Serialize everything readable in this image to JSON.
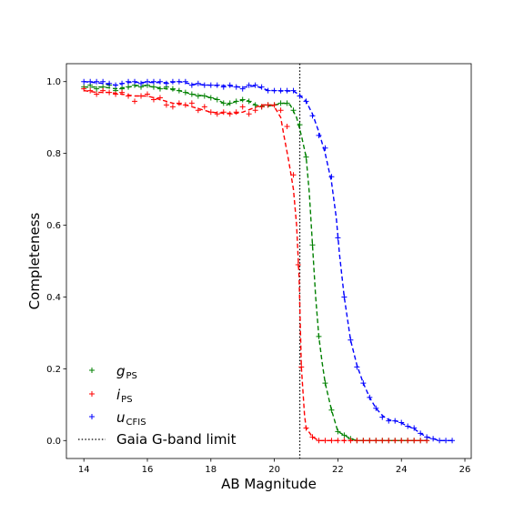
{
  "chart_data": {
    "type": "line",
    "xlabel": "AB Magnitude",
    "ylabel": "Completeness",
    "xlim": [
      13.45,
      26.2
    ],
    "ylim": [
      -0.05,
      1.05
    ],
    "xticks": [
      14,
      16,
      18,
      20,
      22,
      24,
      26
    ],
    "yticks": [
      0.0,
      0.2,
      0.4,
      0.6,
      0.8,
      1.0
    ],
    "legend_position": "lower-left",
    "grid": false,
    "vline": {
      "x": 20.8,
      "label": "Gaia G-band limit",
      "color": "#000000"
    },
    "series": [
      {
        "name_main": "g",
        "name_sub": "PS",
        "color": "#008000",
        "markers": [
          [
            14.0,
            0.985
          ],
          [
            14.2,
            0.99
          ],
          [
            14.4,
            0.98
          ],
          [
            14.6,
            0.985
          ],
          [
            14.8,
            0.99
          ],
          [
            15.0,
            0.975
          ],
          [
            15.2,
            0.98
          ],
          [
            15.4,
            0.985
          ],
          [
            15.6,
            0.99
          ],
          [
            15.8,
            0.985
          ],
          [
            16.0,
            0.99
          ],
          [
            16.2,
            0.985
          ],
          [
            16.4,
            0.98
          ],
          [
            16.6,
            0.985
          ],
          [
            16.8,
            0.98
          ],
          [
            17.0,
            0.975
          ],
          [
            17.2,
            0.97
          ],
          [
            17.4,
            0.965
          ],
          [
            17.6,
            0.96
          ],
          [
            17.8,
            0.96
          ],
          [
            18.0,
            0.955
          ],
          [
            18.2,
            0.95
          ],
          [
            18.4,
            0.94
          ],
          [
            18.6,
            0.94
          ],
          [
            18.8,
            0.945
          ],
          [
            19.0,
            0.95
          ],
          [
            19.2,
            0.945
          ],
          [
            19.4,
            0.935
          ],
          [
            19.6,
            0.93
          ],
          [
            19.8,
            0.935
          ],
          [
            20.0,
            0.935
          ],
          [
            20.2,
            0.94
          ],
          [
            20.4,
            0.94
          ],
          [
            20.6,
            0.92
          ],
          [
            20.8,
            0.88
          ],
          [
            21.0,
            0.79
          ],
          [
            21.2,
            0.545
          ],
          [
            21.4,
            0.29
          ],
          [
            21.6,
            0.16
          ],
          [
            21.8,
            0.085
          ],
          [
            22.0,
            0.025
          ],
          [
            22.2,
            0.015
          ],
          [
            22.4,
            0.005
          ],
          [
            22.6,
            0.0
          ],
          [
            22.8,
            0.0
          ],
          [
            23.0,
            0.0
          ],
          [
            23.2,
            0.0
          ],
          [
            23.4,
            0.0
          ],
          [
            23.6,
            0.0
          ],
          [
            23.8,
            0.0
          ],
          [
            24.0,
            0.0
          ],
          [
            24.2,
            0.0
          ],
          [
            24.4,
            0.0
          ],
          [
            24.6,
            0.0
          ],
          [
            24.8,
            0.0
          ]
        ],
        "line": [
          [
            14.0,
            0.985
          ],
          [
            14.3,
            0.985
          ],
          [
            14.6,
            0.985
          ],
          [
            15.0,
            0.98
          ],
          [
            15.4,
            0.985
          ],
          [
            15.8,
            0.99
          ],
          [
            16.2,
            0.985
          ],
          [
            16.6,
            0.98
          ],
          [
            17.0,
            0.975
          ],
          [
            17.4,
            0.965
          ],
          [
            17.8,
            0.96
          ],
          [
            18.2,
            0.95
          ],
          [
            18.5,
            0.935
          ],
          [
            18.8,
            0.945
          ],
          [
            19.1,
            0.95
          ],
          [
            19.4,
            0.935
          ],
          [
            19.7,
            0.93
          ],
          [
            20.0,
            0.935
          ],
          [
            20.3,
            0.94
          ],
          [
            20.5,
            0.935
          ],
          [
            20.7,
            0.9
          ],
          [
            20.85,
            0.85
          ],
          [
            21.0,
            0.79
          ],
          [
            21.1,
            0.69
          ],
          [
            21.2,
            0.545
          ],
          [
            21.3,
            0.4
          ],
          [
            21.4,
            0.29
          ],
          [
            21.5,
            0.22
          ],
          [
            21.6,
            0.16
          ],
          [
            21.8,
            0.085
          ],
          [
            22.0,
            0.025
          ],
          [
            22.2,
            0.015
          ],
          [
            22.4,
            0.005
          ],
          [
            22.6,
            0.0
          ],
          [
            24.8,
            0.0
          ]
        ]
      },
      {
        "name_main": "i",
        "name_sub": "PS",
        "color": "#ff0000",
        "markers": [
          [
            14.0,
            0.98
          ],
          [
            14.2,
            0.975
          ],
          [
            14.4,
            0.965
          ],
          [
            14.6,
            0.975
          ],
          [
            14.8,
            0.97
          ],
          [
            15.0,
            0.965
          ],
          [
            15.2,
            0.97
          ],
          [
            15.4,
            0.96
          ],
          [
            15.6,
            0.945
          ],
          [
            15.8,
            0.96
          ],
          [
            16.0,
            0.965
          ],
          [
            16.2,
            0.95
          ],
          [
            16.4,
            0.955
          ],
          [
            16.6,
            0.935
          ],
          [
            16.8,
            0.93
          ],
          [
            17.0,
            0.94
          ],
          [
            17.2,
            0.935
          ],
          [
            17.4,
            0.94
          ],
          [
            17.6,
            0.92
          ],
          [
            17.8,
            0.93
          ],
          [
            18.0,
            0.915
          ],
          [
            18.2,
            0.91
          ],
          [
            18.4,
            0.915
          ],
          [
            18.6,
            0.91
          ],
          [
            18.8,
            0.915
          ],
          [
            19.0,
            0.93
          ],
          [
            19.2,
            0.91
          ],
          [
            19.4,
            0.92
          ],
          [
            19.6,
            0.93
          ],
          [
            19.8,
            0.935
          ],
          [
            20.0,
            0.935
          ],
          [
            20.2,
            0.92
          ],
          [
            20.4,
            0.875
          ],
          [
            20.6,
            0.74
          ],
          [
            20.75,
            0.49
          ],
          [
            20.85,
            0.205
          ],
          [
            21.0,
            0.035
          ],
          [
            21.2,
            0.01
          ],
          [
            21.4,
            0.0
          ],
          [
            21.6,
            0.0
          ],
          [
            21.8,
            0.0
          ],
          [
            22.0,
            0.0
          ],
          [
            22.2,
            0.0
          ],
          [
            22.4,
            0.0
          ],
          [
            22.6,
            0.0
          ],
          [
            22.8,
            0.0
          ],
          [
            23.0,
            0.0
          ],
          [
            23.2,
            0.0
          ],
          [
            23.4,
            0.0
          ],
          [
            23.6,
            0.0
          ],
          [
            23.8,
            0.0
          ],
          [
            24.0,
            0.0
          ],
          [
            24.2,
            0.0
          ],
          [
            24.4,
            0.0
          ],
          [
            24.6,
            0.0
          ],
          [
            24.8,
            0.0
          ]
        ],
        "line": [
          [
            14.0,
            0.975
          ],
          [
            14.4,
            0.97
          ],
          [
            14.8,
            0.97
          ],
          [
            15.2,
            0.965
          ],
          [
            15.6,
            0.96
          ],
          [
            16.0,
            0.96
          ],
          [
            16.4,
            0.95
          ],
          [
            16.8,
            0.94
          ],
          [
            17.2,
            0.935
          ],
          [
            17.6,
            0.925
          ],
          [
            18.0,
            0.915
          ],
          [
            18.4,
            0.912
          ],
          [
            18.8,
            0.912
          ],
          [
            19.0,
            0.915
          ],
          [
            19.3,
            0.925
          ],
          [
            19.6,
            0.935
          ],
          [
            19.9,
            0.935
          ],
          [
            20.0,
            0.93
          ],
          [
            20.2,
            0.9
          ],
          [
            20.3,
            0.85
          ],
          [
            20.45,
            0.78
          ],
          [
            20.6,
            0.7
          ],
          [
            20.7,
            0.6
          ],
          [
            20.78,
            0.45
          ],
          [
            20.85,
            0.205
          ],
          [
            20.95,
            0.07
          ],
          [
            21.0,
            0.035
          ],
          [
            21.2,
            0.01
          ],
          [
            21.4,
            0.0
          ],
          [
            24.8,
            0.0
          ]
        ]
      },
      {
        "name_main": "u",
        "name_sub": "CFIS",
        "color": "#0000ff",
        "markers": [
          [
            14.0,
            1.0
          ],
          [
            14.2,
            1.0
          ],
          [
            14.4,
            1.0
          ],
          [
            14.6,
            1.0
          ],
          [
            14.8,
            0.995
          ],
          [
            15.0,
            0.99
          ],
          [
            15.2,
            0.995
          ],
          [
            15.4,
            1.0
          ],
          [
            15.6,
            1.0
          ],
          [
            15.8,
            0.995
          ],
          [
            16.0,
            1.0
          ],
          [
            16.2,
            1.0
          ],
          [
            16.4,
            1.0
          ],
          [
            16.6,
            0.995
          ],
          [
            16.8,
            1.0
          ],
          [
            17.0,
            1.0
          ],
          [
            17.2,
            1.0
          ],
          [
            17.4,
            0.99
          ],
          [
            17.6,
            0.995
          ],
          [
            17.8,
            0.99
          ],
          [
            18.0,
            0.99
          ],
          [
            18.2,
            0.99
          ],
          [
            18.4,
            0.985
          ],
          [
            18.6,
            0.99
          ],
          [
            18.8,
            0.985
          ],
          [
            19.0,
            0.98
          ],
          [
            19.2,
            0.99
          ],
          [
            19.4,
            0.99
          ],
          [
            19.6,
            0.985
          ],
          [
            19.8,
            0.975
          ],
          [
            20.0,
            0.975
          ],
          [
            20.2,
            0.975
          ],
          [
            20.4,
            0.975
          ],
          [
            20.6,
            0.975
          ],
          [
            20.8,
            0.96
          ],
          [
            21.0,
            0.945
          ],
          [
            21.2,
            0.905
          ],
          [
            21.4,
            0.85
          ],
          [
            21.6,
            0.815
          ],
          [
            21.8,
            0.735
          ],
          [
            22.0,
            0.565
          ],
          [
            22.2,
            0.4
          ],
          [
            22.4,
            0.28
          ],
          [
            22.6,
            0.205
          ],
          [
            22.8,
            0.16
          ],
          [
            23.0,
            0.12
          ],
          [
            23.2,
            0.09
          ],
          [
            23.4,
            0.065
          ],
          [
            23.6,
            0.055
          ],
          [
            23.8,
            0.055
          ],
          [
            24.0,
            0.05
          ],
          [
            24.2,
            0.04
          ],
          [
            24.4,
            0.035
          ],
          [
            24.6,
            0.02
          ],
          [
            24.8,
            0.01
          ],
          [
            25.0,
            0.005
          ],
          [
            25.2,
            0.0
          ],
          [
            25.4,
            0.0
          ],
          [
            25.6,
            0.0
          ]
        ],
        "line": [
          [
            14.0,
            1.0
          ],
          [
            14.6,
            0.995
          ],
          [
            15.0,
            0.99
          ],
          [
            15.4,
            0.998
          ],
          [
            16.0,
            0.998
          ],
          [
            16.6,
            0.997
          ],
          [
            17.0,
            1.0
          ],
          [
            17.4,
            0.993
          ],
          [
            18.0,
            0.99
          ],
          [
            18.6,
            0.988
          ],
          [
            19.0,
            0.984
          ],
          [
            19.4,
            0.988
          ],
          [
            19.8,
            0.976
          ],
          [
            20.2,
            0.974
          ],
          [
            20.6,
            0.974
          ],
          [
            20.8,
            0.962
          ],
          [
            21.0,
            0.945
          ],
          [
            21.2,
            0.91
          ],
          [
            21.4,
            0.86
          ],
          [
            21.6,
            0.8
          ],
          [
            21.8,
            0.72
          ],
          [
            21.95,
            0.62
          ],
          [
            22.05,
            0.52
          ],
          [
            22.2,
            0.4
          ],
          [
            22.4,
            0.28
          ],
          [
            22.6,
            0.21
          ],
          [
            22.8,
            0.16
          ],
          [
            23.0,
            0.12
          ],
          [
            23.2,
            0.09
          ],
          [
            23.4,
            0.07
          ],
          [
            23.6,
            0.058
          ],
          [
            23.9,
            0.053
          ],
          [
            24.2,
            0.04
          ],
          [
            24.4,
            0.033
          ],
          [
            24.6,
            0.02
          ],
          [
            24.8,
            0.01
          ],
          [
            25.0,
            0.005
          ],
          [
            25.2,
            0.0
          ],
          [
            25.6,
            0.0
          ]
        ]
      }
    ]
  }
}
